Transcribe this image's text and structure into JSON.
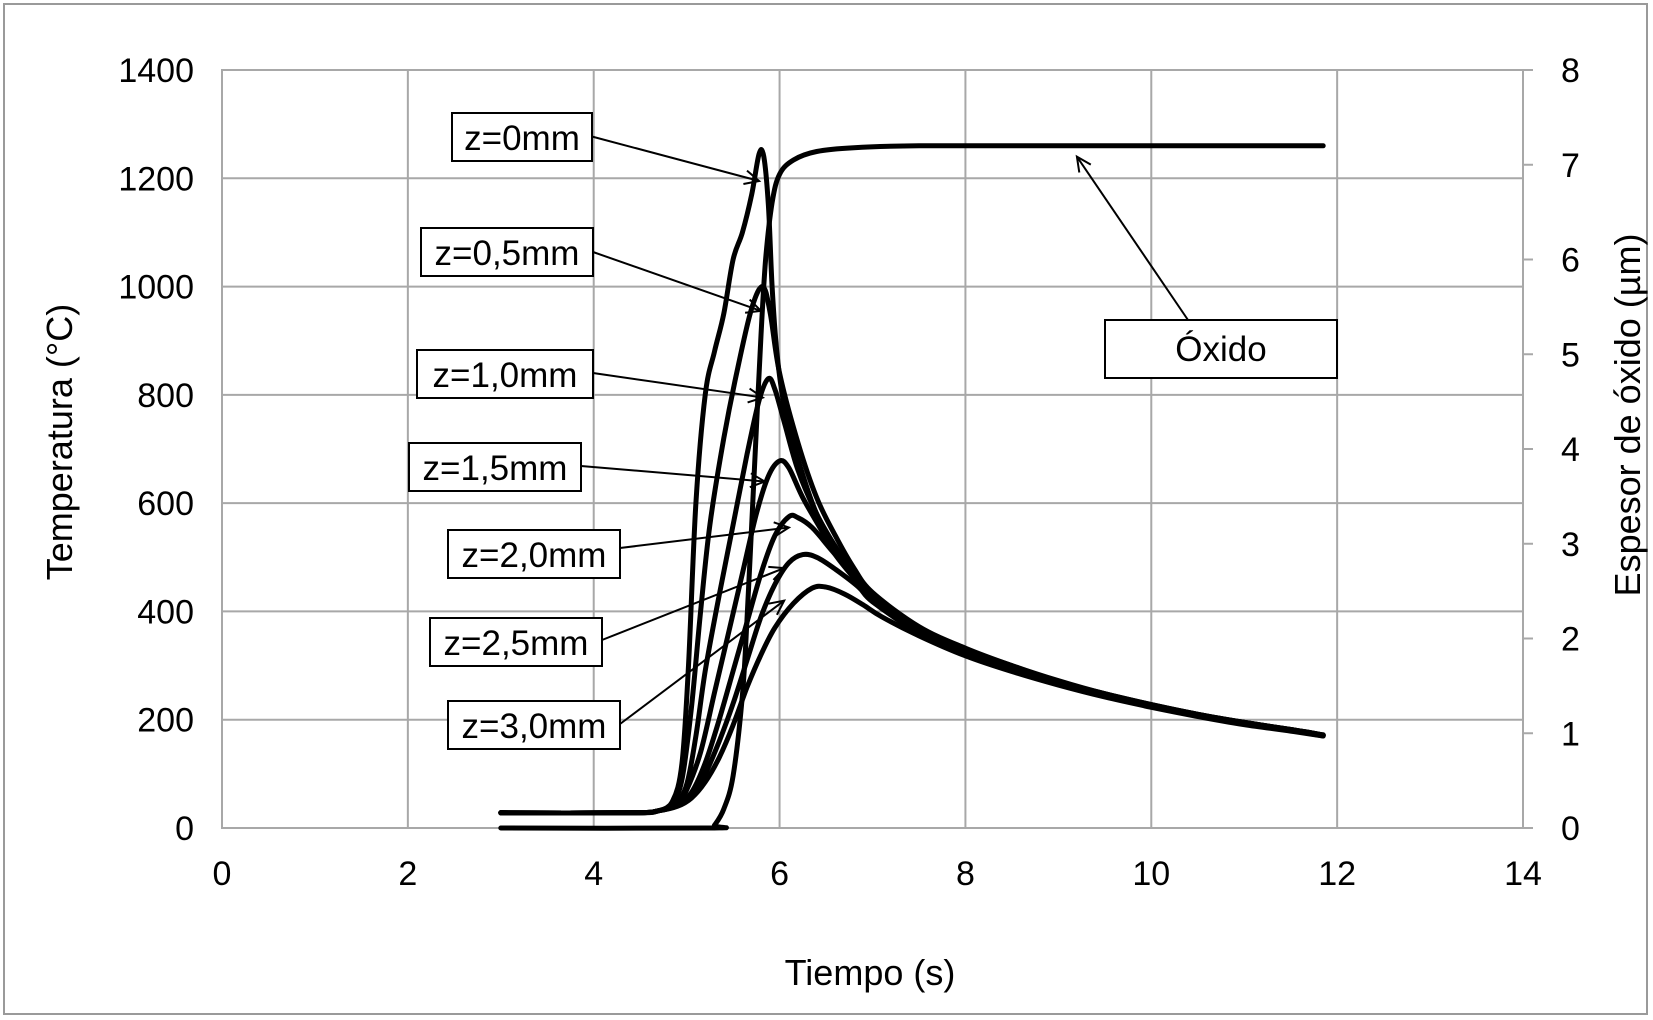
{
  "chart_data": {
    "type": "line",
    "xlabel": "Tiempo (s)",
    "ylabel": "Temperatura (°C)",
    "y2label": "Espesor de óxido (µm)",
    "xlim": [
      0,
      14
    ],
    "ylim": [
      0,
      1400
    ],
    "y2lim": [
      0,
      8
    ],
    "xticks": [
      "0",
      "2",
      "4",
      "6",
      "8",
      "10",
      "12",
      "14"
    ],
    "yticks": [
      "0",
      "200",
      "400",
      "600",
      "800",
      "1000",
      "1200",
      "1400"
    ],
    "y2ticks": [
      "0",
      "1",
      "2",
      "3",
      "4",
      "5",
      "6",
      "7",
      "8"
    ],
    "grid": true,
    "series": [
      {
        "name": "z=0mm",
        "axis": "left",
        "points": [
          [
            3.0,
            28
          ],
          [
            4.4,
            28
          ],
          [
            4.7,
            32
          ],
          [
            4.85,
            50
          ],
          [
            4.95,
            120
          ],
          [
            5.02,
            300
          ],
          [
            5.1,
            600
          ],
          [
            5.2,
            800
          ],
          [
            5.3,
            880
          ],
          [
            5.4,
            950
          ],
          [
            5.5,
            1050
          ],
          [
            5.6,
            1100
          ],
          [
            5.7,
            1170
          ],
          [
            5.78,
            1245
          ],
          [
            5.83,
            1240
          ],
          [
            5.88,
            1150
          ],
          [
            5.92,
            1000
          ],
          [
            5.97,
            880
          ],
          [
            6.05,
            780
          ],
          [
            6.2,
            680
          ],
          [
            6.4,
            580
          ],
          [
            6.6,
            520
          ],
          [
            6.8,
            470
          ],
          [
            7.0,
            430
          ],
          [
            7.5,
            370
          ],
          [
            8.0,
            330
          ],
          [
            8.5,
            300
          ],
          [
            9.0,
            270
          ],
          [
            9.5,
            248
          ],
          [
            10.0,
            228
          ],
          [
            10.5,
            210
          ],
          [
            11.0,
            195
          ],
          [
            11.5,
            182
          ],
          [
            11.85,
            172
          ]
        ]
      },
      {
        "name": "z=0,5mm",
        "axis": "left",
        "points": [
          [
            3.0,
            28
          ],
          [
            4.4,
            28
          ],
          [
            4.7,
            32
          ],
          [
            4.85,
            48
          ],
          [
            4.95,
            90
          ],
          [
            5.05,
            220
          ],
          [
            5.15,
            400
          ],
          [
            5.25,
            560
          ],
          [
            5.4,
            720
          ],
          [
            5.55,
            850
          ],
          [
            5.7,
            960
          ],
          [
            5.82,
            1000
          ],
          [
            5.9,
            950
          ],
          [
            6.0,
            840
          ],
          [
            6.2,
            710
          ],
          [
            6.4,
            610
          ],
          [
            6.6,
            540
          ],
          [
            6.8,
            480
          ],
          [
            7.0,
            435
          ],
          [
            7.5,
            372
          ],
          [
            8.0,
            332
          ],
          [
            8.5,
            300
          ],
          [
            9.0,
            272
          ],
          [
            9.5,
            248
          ],
          [
            10.0,
            228
          ],
          [
            10.5,
            210
          ],
          [
            11.0,
            195
          ],
          [
            11.5,
            182
          ],
          [
            11.85,
            172
          ]
        ]
      },
      {
        "name": "z=1,0mm",
        "axis": "left",
        "points": [
          [
            3.0,
            28
          ],
          [
            4.4,
            28
          ],
          [
            4.7,
            32
          ],
          [
            4.88,
            45
          ],
          [
            5.0,
            80
          ],
          [
            5.1,
            170
          ],
          [
            5.2,
            290
          ],
          [
            5.35,
            430
          ],
          [
            5.5,
            560
          ],
          [
            5.65,
            690
          ],
          [
            5.78,
            790
          ],
          [
            5.88,
            830
          ],
          [
            5.95,
            810
          ],
          [
            6.05,
            750
          ],
          [
            6.2,
            660
          ],
          [
            6.4,
            580
          ],
          [
            6.6,
            520
          ],
          [
            6.8,
            470
          ],
          [
            7.0,
            430
          ],
          [
            7.5,
            370
          ],
          [
            8.0,
            330
          ],
          [
            8.5,
            298
          ],
          [
            9.0,
            270
          ],
          [
            9.5,
            247
          ],
          [
            10.0,
            227
          ],
          [
            10.5,
            210
          ],
          [
            11.0,
            195
          ],
          [
            11.5,
            182
          ],
          [
            11.85,
            172
          ]
        ]
      },
      {
        "name": "z=1,5mm",
        "axis": "left",
        "points": [
          [
            3.0,
            28
          ],
          [
            4.4,
            28
          ],
          [
            4.7,
            32
          ],
          [
            4.9,
            45
          ],
          [
            5.0,
            70
          ],
          [
            5.15,
            140
          ],
          [
            5.3,
            250
          ],
          [
            5.45,
            360
          ],
          [
            5.6,
            470
          ],
          [
            5.75,
            580
          ],
          [
            5.88,
            650
          ],
          [
            6.0,
            678
          ],
          [
            6.1,
            665
          ],
          [
            6.25,
            610
          ],
          [
            6.45,
            550
          ],
          [
            6.6,
            505
          ],
          [
            6.8,
            462
          ],
          [
            7.0,
            425
          ],
          [
            7.5,
            366
          ],
          [
            8.0,
            327
          ],
          [
            8.5,
            296
          ],
          [
            9.0,
            268
          ],
          [
            9.5,
            246
          ],
          [
            10.0,
            226
          ],
          [
            10.5,
            209
          ],
          [
            11.0,
            194
          ],
          [
            11.5,
            181
          ],
          [
            11.85,
            171
          ]
        ]
      },
      {
        "name": "z=2,0mm",
        "axis": "left",
        "points": [
          [
            3.0,
            28
          ],
          [
            4.4,
            28
          ],
          [
            4.7,
            32
          ],
          [
            4.9,
            42
          ],
          [
            5.05,
            65
          ],
          [
            5.2,
            120
          ],
          [
            5.35,
            200
          ],
          [
            5.5,
            290
          ],
          [
            5.65,
            380
          ],
          [
            5.8,
            470
          ],
          [
            5.95,
            540
          ],
          [
            6.1,
            575
          ],
          [
            6.2,
            573
          ],
          [
            6.35,
            555
          ],
          [
            6.55,
            515
          ],
          [
            6.8,
            465
          ],
          [
            7.0,
            425
          ],
          [
            7.5,
            365
          ],
          [
            8.0,
            325
          ],
          [
            8.5,
            294
          ],
          [
            9.0,
            267
          ],
          [
            9.5,
            245
          ],
          [
            10.0,
            225
          ],
          [
            10.5,
            208
          ],
          [
            11.0,
            193
          ],
          [
            11.5,
            180
          ],
          [
            11.85,
            171
          ]
        ]
      },
      {
        "name": "z=2,5mm",
        "axis": "left",
        "points": [
          [
            3.0,
            28
          ],
          [
            4.4,
            28
          ],
          [
            4.7,
            32
          ],
          [
            4.9,
            42
          ],
          [
            5.05,
            60
          ],
          [
            5.2,
            100
          ],
          [
            5.35,
            160
          ],
          [
            5.5,
            230
          ],
          [
            5.65,
            310
          ],
          [
            5.8,
            390
          ],
          [
            5.95,
            450
          ],
          [
            6.1,
            490
          ],
          [
            6.25,
            505
          ],
          [
            6.4,
            500
          ],
          [
            6.6,
            478
          ],
          [
            6.85,
            445
          ],
          [
            7.0,
            418
          ],
          [
            7.5,
            360
          ],
          [
            8.0,
            322
          ],
          [
            8.5,
            292
          ],
          [
            9.0,
            266
          ],
          [
            9.5,
            244
          ],
          [
            10.0,
            224
          ],
          [
            10.5,
            207
          ],
          [
            11.0,
            192
          ],
          [
            11.5,
            180
          ],
          [
            11.85,
            170
          ]
        ]
      },
      {
        "name": "z=3,0mm",
        "axis": "left",
        "points": [
          [
            3.0,
            28
          ],
          [
            4.4,
            28
          ],
          [
            4.7,
            32
          ],
          [
            4.9,
            40
          ],
          [
            5.05,
            55
          ],
          [
            5.2,
            85
          ],
          [
            5.35,
            130
          ],
          [
            5.5,
            190
          ],
          [
            5.65,
            260
          ],
          [
            5.8,
            320
          ],
          [
            5.95,
            370
          ],
          [
            6.15,
            415
          ],
          [
            6.35,
            443
          ],
          [
            6.5,
            445
          ],
          [
            6.7,
            432
          ],
          [
            6.9,
            412
          ],
          [
            7.1,
            390
          ],
          [
            7.5,
            355
          ],
          [
            8.0,
            318
          ],
          [
            8.5,
            289
          ],
          [
            9.0,
            264
          ],
          [
            9.5,
            242
          ],
          [
            10.0,
            223
          ],
          [
            10.5,
            206
          ],
          [
            11.0,
            191
          ],
          [
            11.5,
            179
          ],
          [
            11.85,
            170
          ]
        ]
      },
      {
        "name": "Óxido",
        "axis": "right",
        "points": [
          [
            3.0,
            0
          ],
          [
            5.25,
            0
          ],
          [
            5.3,
            0.03
          ],
          [
            5.4,
            0.2
          ],
          [
            5.5,
            0.55
          ],
          [
            5.6,
            1.4
          ],
          [
            5.65,
            2.2
          ],
          [
            5.7,
            3.2
          ],
          [
            5.75,
            4.2
          ],
          [
            5.8,
            5.2
          ],
          [
            5.85,
            6.0
          ],
          [
            5.92,
            6.6
          ],
          [
            6.0,
            6.9
          ],
          [
            6.15,
            7.05
          ],
          [
            6.4,
            7.14
          ],
          [
            6.8,
            7.18
          ],
          [
            7.5,
            7.2
          ],
          [
            9.0,
            7.2
          ],
          [
            11.85,
            7.2
          ]
        ]
      }
    ],
    "annotations": [
      {
        "text": "z=0mm",
        "target": [
          5.78,
          1195
        ]
      },
      {
        "text": "z=0,5mm",
        "target": [
          5.8,
          955
        ]
      },
      {
        "text": "z=1,0mm",
        "target": [
          5.82,
          795
        ]
      },
      {
        "text": "z=1,5mm",
        "target": [
          5.84,
          640
        ]
      },
      {
        "text": "z=2,0mm",
        "target": [
          6.1,
          555
        ]
      },
      {
        "text": "z=2,5mm",
        "target": [
          6.05,
          480
        ]
      },
      {
        "text": "z=3,0mm",
        "target": [
          6.05,
          420
        ]
      },
      {
        "text": "Óxido",
        "target": [
          9.2,
          1240
        ]
      }
    ]
  }
}
